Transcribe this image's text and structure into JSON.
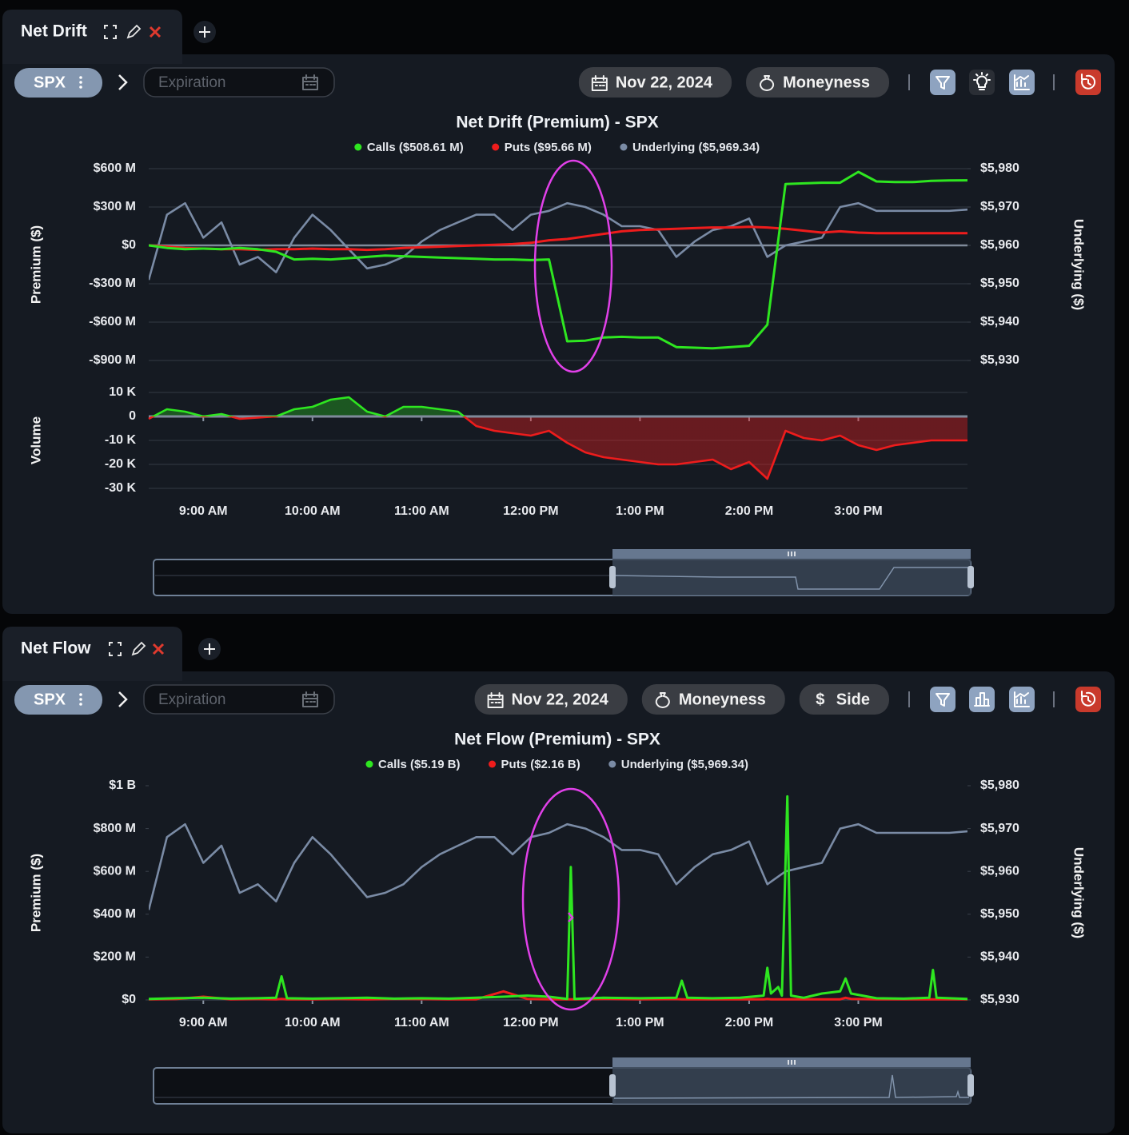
{
  "panels": [
    {
      "tab": "Net Drift",
      "symbol": "SPX",
      "expiration": "Expiration",
      "date": "Nov 22, 2024",
      "buttons": [
        {
          "label": "Moneyness"
        }
      ]
    },
    {
      "tab": "Net Flow",
      "symbol": "SPX",
      "expiration": "Expiration",
      "date": "Nov 22, 2024",
      "buttons": [
        {
          "label": "Moneyness"
        },
        {
          "icon": "$",
          "label": "Side"
        }
      ]
    }
  ],
  "chart_data": [
    {
      "type": "line",
      "title": "Net Drift (Premium) - SPX",
      "y_label": "Premium ($)",
      "y2_label": "Underlying ($)",
      "legend_position": "top",
      "grid": true,
      "x": [
        510,
        520,
        530,
        540,
        550,
        560,
        570,
        580,
        590,
        600,
        610,
        620,
        630,
        640,
        650,
        660,
        670,
        680,
        690,
        700,
        710,
        720,
        730,
        740,
        750,
        760,
        770,
        780,
        790,
        800,
        810,
        820,
        830,
        840,
        850,
        860,
        870,
        880,
        890,
        900,
        910,
        920,
        930,
        940,
        950,
        960
      ],
      "xlim": [
        510,
        960
      ],
      "ylim": [
        -900,
        600
      ],
      "yticks": [
        {
          "value": 600,
          "label": "$600 M"
        },
        {
          "value": 300,
          "label": "$300 M"
        },
        {
          "value": 0,
          "label": "$0"
        },
        {
          "value": -300,
          "label": "-$300 M"
        },
        {
          "value": -600,
          "label": "-$600 M"
        },
        {
          "value": -900,
          "label": "-$900 M"
        }
      ],
      "y2lim": [
        5930,
        5980
      ],
      "y2ticks": [
        {
          "value": 5980,
          "label": "$5,980"
        },
        {
          "value": 5970,
          "label": "$5,970"
        },
        {
          "value": 5960,
          "label": "$5,960"
        },
        {
          "value": 5950,
          "label": "$5,950"
        },
        {
          "value": 5940,
          "label": "$5,940"
        },
        {
          "value": 5930,
          "label": "$5,930"
        }
      ],
      "series": [
        {
          "name": "Calls ($508.61 M)",
          "color": "#2ee620",
          "values": [
            0,
            -20,
            -30,
            -25,
            -30,
            -20,
            -30,
            -50,
            -110,
            -105,
            -110,
            -100,
            -90,
            -80,
            -85,
            -90,
            -95,
            -100,
            -105,
            -110,
            -110,
            -115,
            -110,
            -750,
            -745,
            -720,
            -715,
            -720,
            -720,
            -795,
            -800,
            -805,
            -795,
            -785,
            -620,
            480,
            485,
            490,
            490,
            575,
            500,
            495,
            495,
            505,
            508,
            508.61
          ]
        },
        {
          "name": "Puts ($95.66 M)",
          "color": "#ee1c1c",
          "values": [
            0,
            -10,
            -20,
            -25,
            -30,
            -30,
            -35,
            -30,
            -30,
            -25,
            -30,
            -30,
            -35,
            -30,
            -20,
            -15,
            -10,
            -5,
            0,
            5,
            10,
            20,
            40,
            50,
            70,
            90,
            110,
            120,
            125,
            130,
            135,
            140,
            140,
            145,
            140,
            130,
            115,
            100,
            110,
            100,
            95,
            95,
            95,
            95,
            95,
            95.66
          ]
        },
        {
          "name": "Underlying ($5,969.34)",
          "color": "#7a8ba5",
          "axis": "y2",
          "values": [
            5951,
            5968,
            5971,
            5962,
            5966,
            5955,
            5957,
            5953,
            5962,
            5968,
            5964,
            5959,
            5954,
            5955,
            5957,
            5961,
            5964,
            5966,
            5968,
            5968,
            5964,
            5968,
            5969,
            5971,
            5970,
            5968,
            5965,
            5965,
            5964,
            5957,
            5961,
            5964,
            5965,
            5967,
            5957,
            5960,
            5961,
            5962,
            5970,
            5971,
            5969,
            5969,
            5969,
            5969,
            5969,
            5969.34
          ]
        }
      ]
    },
    {
      "type": "area",
      "y_label": "Volume",
      "grid": true,
      "positive_color": "#2ee620",
      "negative_color": "#ee1c1c",
      "x": [
        510,
        520,
        530,
        540,
        550,
        560,
        570,
        580,
        590,
        600,
        610,
        620,
        630,
        640,
        650,
        660,
        670,
        680,
        690,
        700,
        710,
        720,
        730,
        740,
        750,
        760,
        770,
        780,
        790,
        800,
        810,
        820,
        830,
        840,
        850,
        860,
        870,
        880,
        890,
        900,
        910,
        920,
        930,
        940,
        950,
        960
      ],
      "values": [
        -1000,
        3000,
        2000,
        0,
        1000,
        -1000,
        -500,
        0,
        3000,
        4000,
        7000,
        8000,
        2000,
        0,
        4000,
        4000,
        3000,
        2000,
        -4000,
        -6000,
        -7000,
        -8000,
        -6000,
        -11000,
        -15000,
        -17000,
        -18000,
        -19000,
        -20000,
        -20000,
        -19000,
        -18000,
        -22000,
        -19000,
        -26000,
        -6000,
        -9000,
        -10000,
        -8000,
        -12000,
        -14000,
        -12000,
        -11000,
        -10000,
        -10000,
        -10000
      ],
      "xlim": [
        510,
        960
      ],
      "xticks": [
        {
          "value": 540,
          "label": "9:00 AM"
        },
        {
          "value": 600,
          "label": "10:00 AM"
        },
        {
          "value": 660,
          "label": "11:00 AM"
        },
        {
          "value": 720,
          "label": "12:00 PM"
        },
        {
          "value": 780,
          "label": "1:00 PM"
        },
        {
          "value": 840,
          "label": "2:00 PM"
        },
        {
          "value": 900,
          "label": "3:00 PM"
        }
      ],
      "ylim": [
        -30000,
        10000
      ],
      "yticks": [
        {
          "value": 10000,
          "label": "10 K"
        },
        0,
        {
          "value": -10000,
          "label": "-10 K"
        },
        {
          "value": -20000,
          "label": "-20 K"
        },
        {
          "value": -30000,
          "label": "-30 K"
        }
      ]
    },
    {
      "type": "line",
      "title": "Net Flow (Premium) - SPX",
      "y_label": "Premium ($)",
      "y2_label": "Underlying ($)",
      "legend_position": "top",
      "grid": false,
      "x": [
        510,
        520,
        530,
        540,
        550,
        560,
        570,
        580,
        590,
        600,
        610,
        620,
        630,
        640,
        650,
        660,
        670,
        680,
        690,
        700,
        710,
        720,
        730,
        740,
        750,
        760,
        770,
        780,
        790,
        800,
        810,
        820,
        830,
        840,
        850,
        860,
        870,
        880,
        890,
        900,
        910,
        920,
        930,
        940,
        950,
        960
      ],
      "xlim": [
        510,
        960
      ],
      "xticks": [
        {
          "value": 540,
          "label": "9:00 AM"
        },
        {
          "value": 600,
          "label": "10:00 AM"
        },
        {
          "value": 660,
          "label": "11:00 AM"
        },
        {
          "value": 720,
          "label": "12:00 PM"
        },
        {
          "value": 780,
          "label": "1:00 PM"
        },
        {
          "value": 840,
          "label": "2:00 PM"
        },
        {
          "value": 900,
          "label": "3:00 PM"
        }
      ],
      "ylim": [
        0,
        1000
      ],
      "yticks": [
        {
          "value": 1000,
          "label": "$1 B"
        },
        {
          "value": 800,
          "label": "$800 M"
        },
        {
          "value": 600,
          "label": "$600 M"
        },
        {
          "value": 400,
          "label": "$400 M"
        },
        {
          "value": 200,
          "label": "$200 M"
        },
        {
          "value": 0,
          "label": "$0"
        }
      ],
      "y2lim": [
        5930,
        5980
      ],
      "y2ticks": [
        {
          "value": 5980,
          "label": "$5,980"
        },
        {
          "value": 5970,
          "label": "$5,970"
        },
        {
          "value": 5960,
          "label": "$5,960"
        },
        {
          "value": 5950,
          "label": "$5,950"
        },
        {
          "value": 5940,
          "label": "$5,940"
        },
        {
          "value": 5930,
          "label": "$5,930"
        }
      ],
      "series": [
        {
          "name": "Calls ($5.19 B)",
          "color": "#2ee620",
          "x": [
            510,
            525,
            540,
            555,
            570,
            580,
            583,
            586,
            600,
            615,
            630,
            645,
            660,
            675,
            690,
            705,
            718,
            730,
            740,
            742,
            744,
            760,
            780,
            800,
            803,
            806,
            820,
            835,
            848,
            850,
            852,
            856,
            858,
            861,
            863,
            870,
            880,
            890,
            893,
            896,
            910,
            925,
            939,
            941,
            943,
            960
          ],
          "values": [
            5,
            8,
            10,
            6,
            8,
            10,
            110,
            8,
            6,
            8,
            10,
            6,
            8,
            6,
            10,
            15,
            20,
            15,
            5,
            620,
            5,
            10,
            8,
            10,
            90,
            10,
            8,
            10,
            20,
            150,
            30,
            60,
            20,
            950,
            20,
            10,
            30,
            40,
            100,
            30,
            8,
            6,
            10,
            140,
            10,
            5
          ]
        },
        {
          "name": "Puts ($2.16 B)",
          "color": "#ee1c1c",
          "x": [
            510,
            525,
            540,
            555,
            570,
            580,
            583,
            586,
            600,
            615,
            630,
            645,
            660,
            675,
            690,
            705,
            718,
            730,
            740,
            742,
            744,
            760,
            780,
            800,
            803,
            806,
            820,
            835,
            848,
            850,
            852,
            856,
            858,
            861,
            863,
            870,
            880,
            890,
            893,
            896,
            910,
            925,
            939,
            941,
            943,
            960
          ],
          "values": [
            3,
            4,
            15,
            3,
            4,
            3,
            5,
            3,
            3,
            4,
            3,
            5,
            4,
            3,
            3,
            40,
            5,
            3,
            3,
            3,
            3,
            5,
            3,
            4,
            3,
            3,
            3,
            3,
            3,
            5,
            3,
            3,
            3,
            3,
            3,
            3,
            3,
            3,
            10,
            5,
            3,
            3,
            3,
            3,
            3,
            3
          ]
        },
        {
          "name": "Underlying ($5,969.34)",
          "color": "#7a8ba5",
          "axis": "y2",
          "values": [
            5951,
            5968,
            5971,
            5962,
            5966,
            5955,
            5957,
            5953,
            5962,
            5968,
            5964,
            5959,
            5954,
            5955,
            5957,
            5961,
            5964,
            5966,
            5968,
            5968,
            5964,
            5968,
            5969,
            5971,
            5970,
            5968,
            5965,
            5965,
            5964,
            5957,
            5961,
            5964,
            5965,
            5967,
            5957,
            5960,
            5961,
            5962,
            5970,
            5971,
            5969,
            5969,
            5969,
            5969,
            5969,
            5969.34
          ]
        }
      ]
    }
  ]
}
